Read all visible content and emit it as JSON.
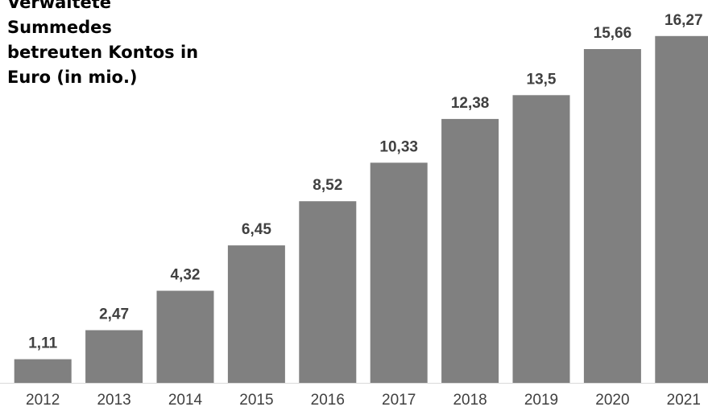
{
  "chart_data": {
    "type": "bar",
    "title": "Verwaltete\nSummedes\nbetreuten Kontos in\nEuro (in mio.)",
    "xlabel": "",
    "ylabel": "",
    "categories": [
      "2012",
      "2013",
      "2014",
      "2015",
      "2016",
      "2017",
      "2018",
      "2019",
      "2020",
      "2021"
    ],
    "values": [
      1.11,
      2.47,
      4.32,
      6.45,
      8.52,
      10.33,
      12.38,
      13.5,
      15.66,
      16.27
    ],
    "value_labels": [
      "1,11",
      "2,47",
      "4,32",
      "6,45",
      "8,52",
      "10,33",
      "12,38",
      "13,5",
      "15,66",
      "16,27"
    ],
    "ylim": [
      0,
      17.5
    ],
    "grid": false,
    "bar_color": "#808080",
    "baseline_color": "#d9d9d9",
    "label_color": "#404040"
  }
}
